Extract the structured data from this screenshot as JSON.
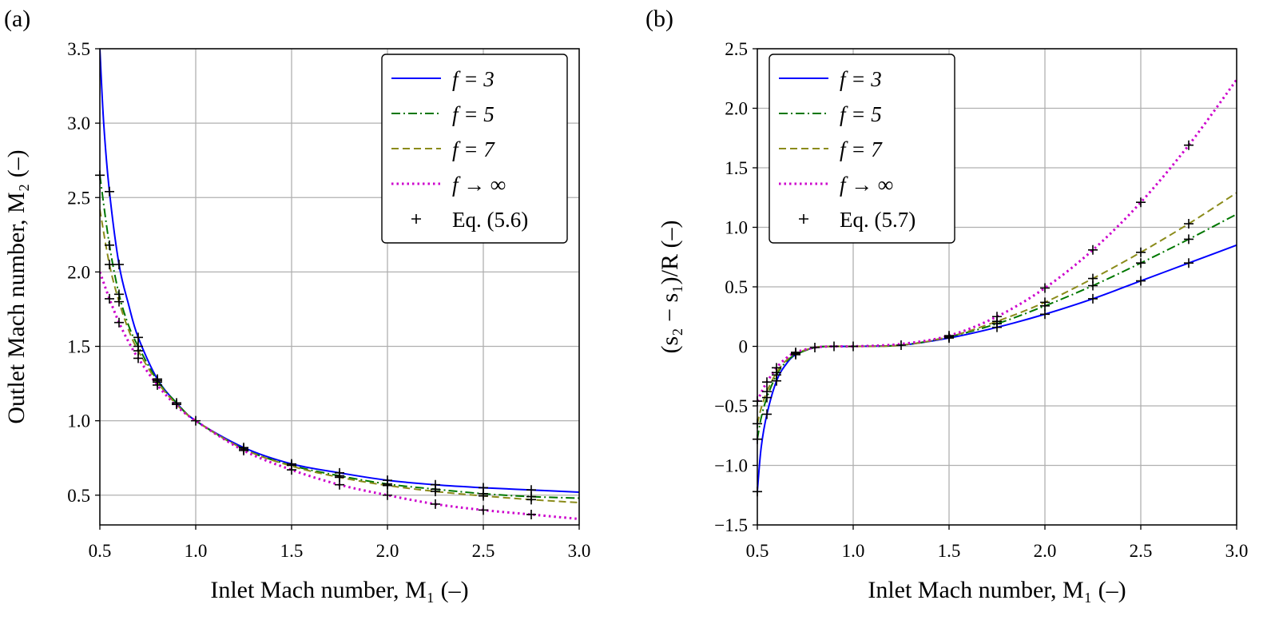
{
  "chart_data": [
    {
      "type": "line",
      "panel_label": "(a)",
      "xlabel": "Inlet Mach number, M₁ (–)",
      "ylabel": "Outlet Mach number, M₂ (–)",
      "xlim": [
        0.5,
        3.0
      ],
      "ylim": [
        0.3,
        3.5
      ],
      "xticks": [
        "0.5",
        "1.0",
        "1.5",
        "2.0",
        "2.5",
        "3.0"
      ],
      "yticks": [
        "0.5",
        "1.0",
        "1.5",
        "2.0",
        "2.5",
        "3.0",
        "3.5"
      ],
      "grid": true,
      "legend_position": "top-right",
      "series": [
        {
          "name": "f = 3",
          "style": "solid",
          "color": "#0000ff",
          "x": [
            0.5,
            0.52,
            0.55,
            0.6,
            0.65,
            0.7,
            0.8,
            0.9,
            1.0,
            1.25,
            1.5,
            1.75,
            2.0,
            2.25,
            2.5,
            2.75,
            3.0
          ],
          "y": [
            3.5,
            3.0,
            2.54,
            2.05,
            1.78,
            1.56,
            1.28,
            1.12,
            1.0,
            0.82,
            0.71,
            0.65,
            0.6,
            0.57,
            0.55,
            0.535,
            0.52
          ]
        },
        {
          "name": "f = 5",
          "style": "dashdot",
          "color": "#007700",
          "x": [
            0.5,
            0.55,
            0.6,
            0.65,
            0.7,
            0.8,
            0.9,
            1.0,
            1.25,
            1.5,
            1.75,
            2.0,
            2.25,
            2.5,
            2.75,
            3.0
          ],
          "y": [
            2.65,
            2.18,
            1.85,
            1.64,
            1.5,
            1.27,
            1.12,
            1.0,
            0.81,
            0.7,
            0.63,
            0.575,
            0.54,
            0.51,
            0.49,
            0.48
          ]
        },
        {
          "name": "f = 7",
          "style": "dashed",
          "color": "#8b8b1a",
          "x": [
            0.5,
            0.55,
            0.6,
            0.65,
            0.7,
            0.8,
            0.9,
            1.0,
            1.25,
            1.5,
            1.75,
            2.0,
            2.25,
            2.5,
            2.75,
            3.0
          ],
          "y": [
            2.42,
            2.05,
            1.8,
            1.61,
            1.47,
            1.26,
            1.11,
            1.0,
            0.81,
            0.695,
            0.62,
            0.565,
            0.525,
            0.495,
            0.47,
            0.45
          ]
        },
        {
          "name": "f → ∞",
          "style": "dotted",
          "color": "#cc00cc",
          "x": [
            0.5,
            0.55,
            0.6,
            0.65,
            0.7,
            0.8,
            0.9,
            1.0,
            1.25,
            1.5,
            1.75,
            2.0,
            2.25,
            2.5,
            2.75,
            3.0
          ],
          "y": [
            2.0,
            1.82,
            1.66,
            1.53,
            1.42,
            1.24,
            1.1,
            1.0,
            0.8,
            0.67,
            0.57,
            0.5,
            0.44,
            0.4,
            0.37,
            0.34
          ]
        }
      ],
      "markers": {
        "name": "Eq. (5.6)",
        "points": [
          [
            0.5,
            2.65
          ],
          [
            0.55,
            2.54
          ],
          [
            0.55,
            2.18
          ],
          [
            0.55,
            2.05
          ],
          [
            0.55,
            1.82
          ],
          [
            0.6,
            2.05
          ],
          [
            0.6,
            1.85
          ],
          [
            0.6,
            1.8
          ],
          [
            0.6,
            1.66
          ],
          [
            0.7,
            1.56
          ],
          [
            0.7,
            1.5
          ],
          [
            0.7,
            1.47
          ],
          [
            0.7,
            1.42
          ],
          [
            0.8,
            1.28
          ],
          [
            0.8,
            1.27
          ],
          [
            0.8,
            1.26
          ],
          [
            0.8,
            1.24
          ],
          [
            0.9,
            1.12
          ],
          [
            0.9,
            1.11
          ],
          [
            1.0,
            1.0
          ],
          [
            1.25,
            0.82
          ],
          [
            1.25,
            0.81
          ],
          [
            1.25,
            0.8
          ],
          [
            1.5,
            0.71
          ],
          [
            1.5,
            0.7
          ],
          [
            1.5,
            0.67
          ],
          [
            1.75,
            0.65
          ],
          [
            1.75,
            0.63
          ],
          [
            1.75,
            0.62
          ],
          [
            1.75,
            0.57
          ],
          [
            2.0,
            0.6
          ],
          [
            2.0,
            0.575
          ],
          [
            2.0,
            0.565
          ],
          [
            2.0,
            0.5
          ],
          [
            2.25,
            0.57
          ],
          [
            2.25,
            0.54
          ],
          [
            2.25,
            0.525
          ],
          [
            2.25,
            0.44
          ],
          [
            2.5,
            0.55
          ],
          [
            2.5,
            0.51
          ],
          [
            2.5,
            0.495
          ],
          [
            2.5,
            0.4
          ],
          [
            2.75,
            0.535
          ],
          [
            2.75,
            0.49
          ],
          [
            2.75,
            0.47
          ],
          [
            2.75,
            0.37
          ]
        ]
      }
    },
    {
      "type": "line",
      "panel_label": "(b)",
      "xlabel": "Inlet Mach number, M₁ (–)",
      "ylabel": "(s₂ − s₁)/R (–)",
      "xlim": [
        0.5,
        3.0
      ],
      "ylim": [
        -1.5,
        2.5
      ],
      "xticks": [
        "0.5",
        "1.0",
        "1.5",
        "2.0",
        "2.5",
        "3.0"
      ],
      "yticks": [
        "−1.5",
        "−1.0",
        "−0.5",
        "0",
        "0.5",
        "1.0",
        "1.5",
        "2.0",
        "2.5"
      ],
      "grid": true,
      "legend_position": "top-left",
      "series": [
        {
          "name": "f = 3",
          "style": "solid",
          "color": "#0000ff",
          "x": [
            0.5,
            0.52,
            0.55,
            0.6,
            0.65,
            0.7,
            0.8,
            0.9,
            1.0,
            1.25,
            1.5,
            1.75,
            2.0,
            2.25,
            2.5,
            2.75,
            3.0
          ],
          "y": [
            -1.22,
            -0.85,
            -0.57,
            -0.29,
            -0.15,
            -0.07,
            -0.01,
            0.0,
            0.0,
            0.01,
            0.07,
            0.16,
            0.27,
            0.4,
            0.55,
            0.7,
            0.85
          ]
        },
        {
          "name": "f = 5",
          "style": "dashdot",
          "color": "#007700",
          "x": [
            0.5,
            0.52,
            0.55,
            0.6,
            0.65,
            0.7,
            0.8,
            0.9,
            1.0,
            1.25,
            1.5,
            1.75,
            2.0,
            2.25,
            2.5,
            2.75,
            3.0
          ],
          "y": [
            -0.78,
            -0.6,
            -0.43,
            -0.24,
            -0.13,
            -0.07,
            -0.01,
            0.0,
            0.0,
            0.01,
            0.08,
            0.19,
            0.34,
            0.51,
            0.7,
            0.9,
            1.11
          ]
        },
        {
          "name": "f = 7",
          "style": "dashed",
          "color": "#8b8b1a",
          "x": [
            0.5,
            0.52,
            0.55,
            0.6,
            0.65,
            0.7,
            0.8,
            0.9,
            1.0,
            1.25,
            1.5,
            1.75,
            2.0,
            2.25,
            2.5,
            2.75,
            3.0
          ],
          "y": [
            -0.65,
            -0.52,
            -0.38,
            -0.22,
            -0.12,
            -0.06,
            -0.01,
            0.0,
            0.0,
            0.01,
            0.08,
            0.21,
            0.37,
            0.57,
            0.79,
            1.03,
            1.29
          ]
        },
        {
          "name": "f → ∞",
          "style": "dotted",
          "color": "#cc00cc",
          "x": [
            0.5,
            0.52,
            0.55,
            0.6,
            0.65,
            0.7,
            0.8,
            0.9,
            1.0,
            1.25,
            1.5,
            1.75,
            2.0,
            2.25,
            2.5,
            2.75,
            3.0
          ],
          "y": [
            -0.46,
            -0.39,
            -0.3,
            -0.18,
            -0.1,
            -0.05,
            -0.01,
            0.0,
            0.0,
            0.02,
            0.09,
            0.25,
            0.49,
            0.81,
            1.21,
            1.69,
            2.24
          ]
        }
      ],
      "markers": {
        "name": "Eq. (5.7)",
        "points": [
          [
            0.5,
            -1.22
          ],
          [
            0.5,
            -0.78
          ],
          [
            0.5,
            -0.65
          ],
          [
            0.5,
            -0.46
          ],
          [
            0.55,
            -0.57
          ],
          [
            0.55,
            -0.43
          ],
          [
            0.55,
            -0.38
          ],
          [
            0.55,
            -0.3
          ],
          [
            0.6,
            -0.29
          ],
          [
            0.6,
            -0.24
          ],
          [
            0.6,
            -0.22
          ],
          [
            0.6,
            -0.18
          ],
          [
            0.7,
            -0.07
          ],
          [
            0.7,
            -0.06
          ],
          [
            0.7,
            -0.05
          ],
          [
            0.8,
            -0.01
          ],
          [
            0.9,
            0.0
          ],
          [
            1.0,
            0.0
          ],
          [
            1.25,
            0.01
          ],
          [
            1.5,
            0.07
          ],
          [
            1.5,
            0.08
          ],
          [
            1.5,
            0.09
          ],
          [
            1.75,
            0.16
          ],
          [
            1.75,
            0.19
          ],
          [
            1.75,
            0.21
          ],
          [
            1.75,
            0.25
          ],
          [
            2.0,
            0.27
          ],
          [
            2.0,
            0.34
          ],
          [
            2.0,
            0.37
          ],
          [
            2.0,
            0.49
          ],
          [
            2.25,
            0.4
          ],
          [
            2.25,
            0.51
          ],
          [
            2.25,
            0.57
          ],
          [
            2.25,
            0.81
          ],
          [
            2.5,
            0.55
          ],
          [
            2.5,
            0.7
          ],
          [
            2.5,
            0.79
          ],
          [
            2.5,
            1.21
          ],
          [
            2.75,
            0.7
          ],
          [
            2.75,
            0.9
          ],
          [
            2.75,
            1.03
          ],
          [
            2.75,
            1.69
          ]
        ]
      }
    }
  ]
}
